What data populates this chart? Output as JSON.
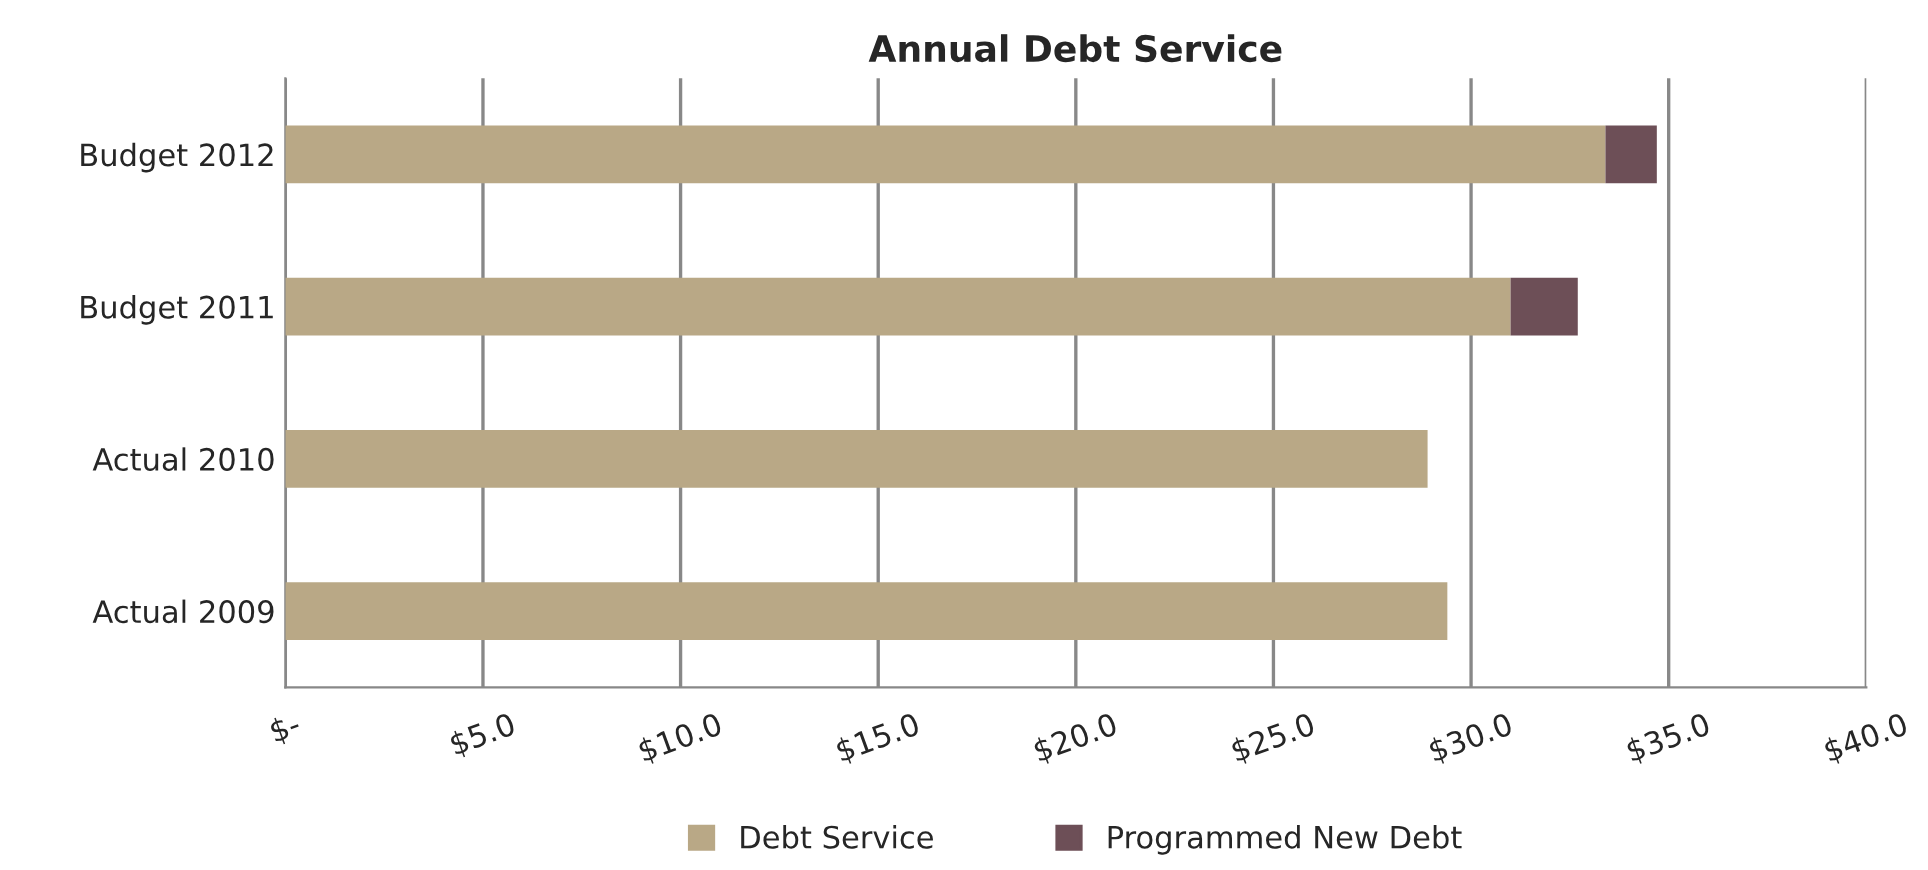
{
  "chart_data": {
    "type": "bar",
    "orientation": "horizontal",
    "stacked": true,
    "title": "Annual Debt Service",
    "categories": [
      "Budget 2012",
      "Budget 2011",
      "Actual 2010",
      "Actual 2009"
    ],
    "series": [
      {
        "name": "Debt Service",
        "color": "#b9a886",
        "values": [
          33.4,
          31.0,
          28.9,
          29.4
        ]
      },
      {
        "name": "Programmed New Debt",
        "color": "#6d4f57",
        "values": [
          1.3,
          1.7,
          null,
          null
        ]
      }
    ],
    "xlim": [
      0,
      40
    ],
    "xticks": [
      {
        "value": 0,
        "label": "$-"
      },
      {
        "value": 5,
        "label": "$5.0"
      },
      {
        "value": 10,
        "label": "$10.0"
      },
      {
        "value": 15,
        "label": "$15.0"
      },
      {
        "value": 20,
        "label": "$20.0"
      },
      {
        "value": 25,
        "label": "$25.0"
      },
      {
        "value": 30,
        "label": "$30.0"
      },
      {
        "value": 35,
        "label": "$35.0"
      },
      {
        "value": 40,
        "label": "$40.0"
      }
    ],
    "grid": "x",
    "legend": "bottom"
  }
}
